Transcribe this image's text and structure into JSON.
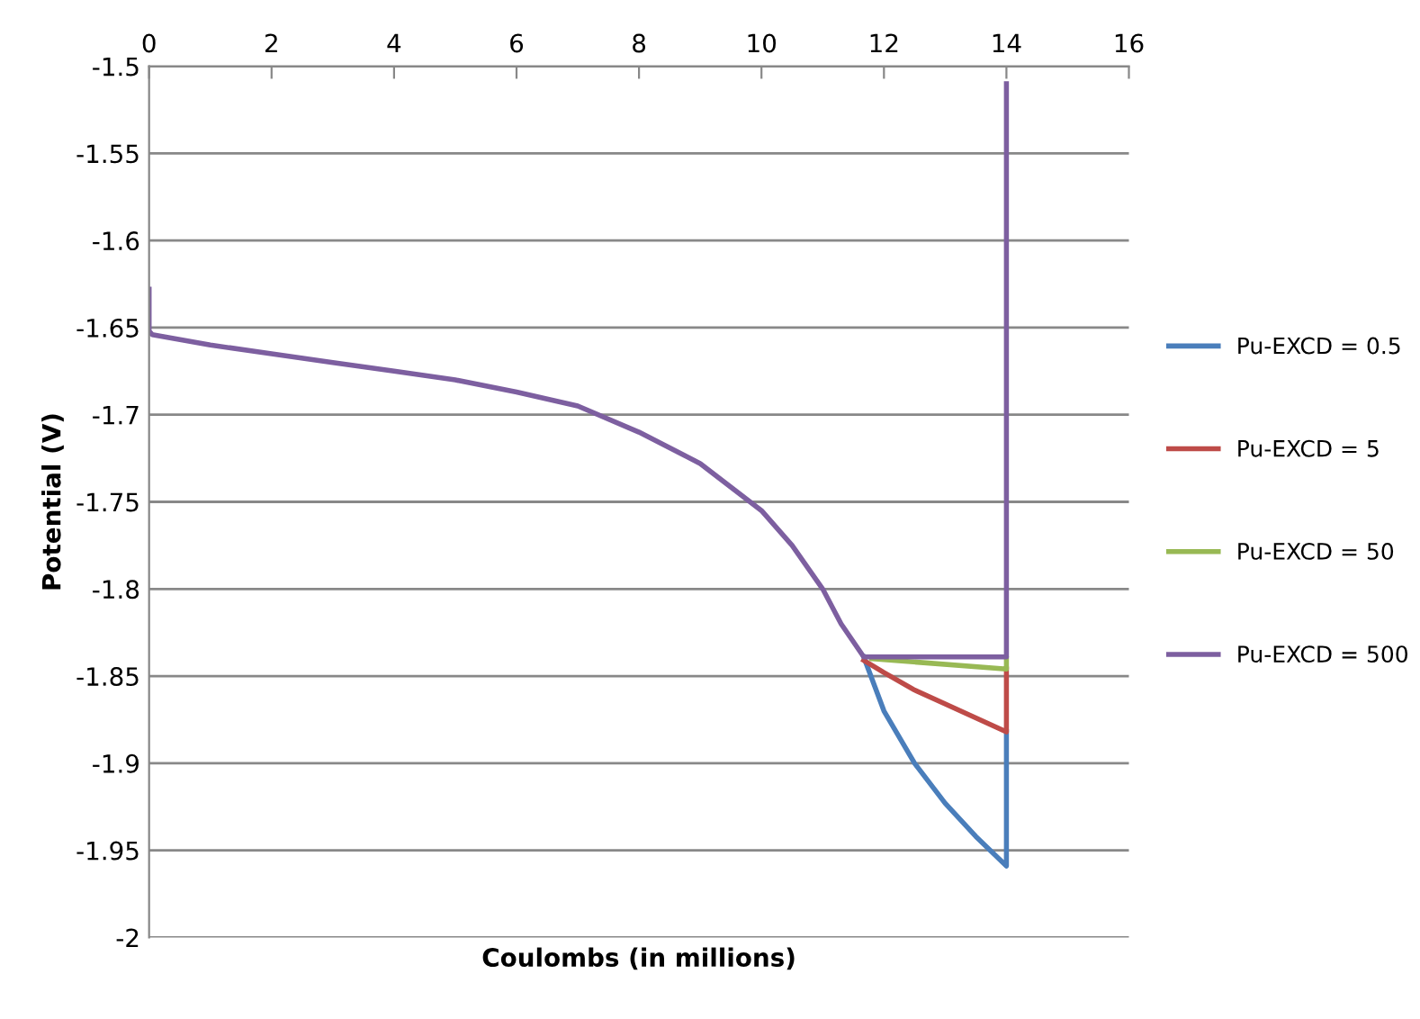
{
  "chart_data": {
    "type": "line",
    "xlabel": "Coulombs (in millions)",
    "ylabel": "Potential (V)",
    "xlim": [
      0,
      16
    ],
    "xticks": [
      0,
      2,
      4,
      6,
      8,
      10,
      12,
      14,
      16
    ],
    "ylim": [
      -2,
      -1.5
    ],
    "yticks": [
      -2,
      -1.95,
      -1.9,
      -1.85,
      -1.8,
      -1.75,
      -1.7,
      -1.65,
      -1.6,
      -1.55,
      -1.5
    ],
    "grid": "y",
    "legend": "right",
    "marker": "none",
    "line_style": "solid",
    "series": [
      {
        "name": "Pu-EXCD = 0.5",
        "color": "#4a7ebb",
        "x": [
          11.67,
          12,
          12.5,
          13,
          13.5,
          14,
          14
        ],
        "values": [
          -1.839,
          -1.87,
          -1.9,
          -1.923,
          -1.942,
          -1.959,
          -1.882
        ]
      },
      {
        "name": "Pu-EXCD = 5",
        "color": "#be4b48",
        "x": [
          11.67,
          12,
          12.5,
          13,
          13.5,
          14,
          14
        ],
        "values": [
          -1.841,
          -1.848,
          -1.858,
          -1.866,
          -1.874,
          -1.882,
          -1.846
        ]
      },
      {
        "name": "Pu-EXCD = 50",
        "color": "#98b954",
        "x": [
          11.8,
          14,
          14
        ],
        "values": [
          -1.84,
          -1.846,
          -1.84
        ]
      },
      {
        "name": "Pu-EXCD = 500",
        "color": "#7d5fa0",
        "x": [
          0,
          0,
          0.05,
          1,
          2,
          3,
          4,
          5,
          6,
          7,
          8,
          9,
          10,
          10.5,
          11,
          11.3,
          11.67,
          14,
          14
        ],
        "values": [
          -1.628,
          -1.652,
          -1.654,
          -1.66,
          -1.665,
          -1.67,
          -1.675,
          -1.68,
          -1.687,
          -1.695,
          -1.71,
          -1.728,
          -1.755,
          -1.775,
          -1.8,
          -1.82,
          -1.839,
          -1.839,
          -1.51
        ]
      }
    ]
  }
}
